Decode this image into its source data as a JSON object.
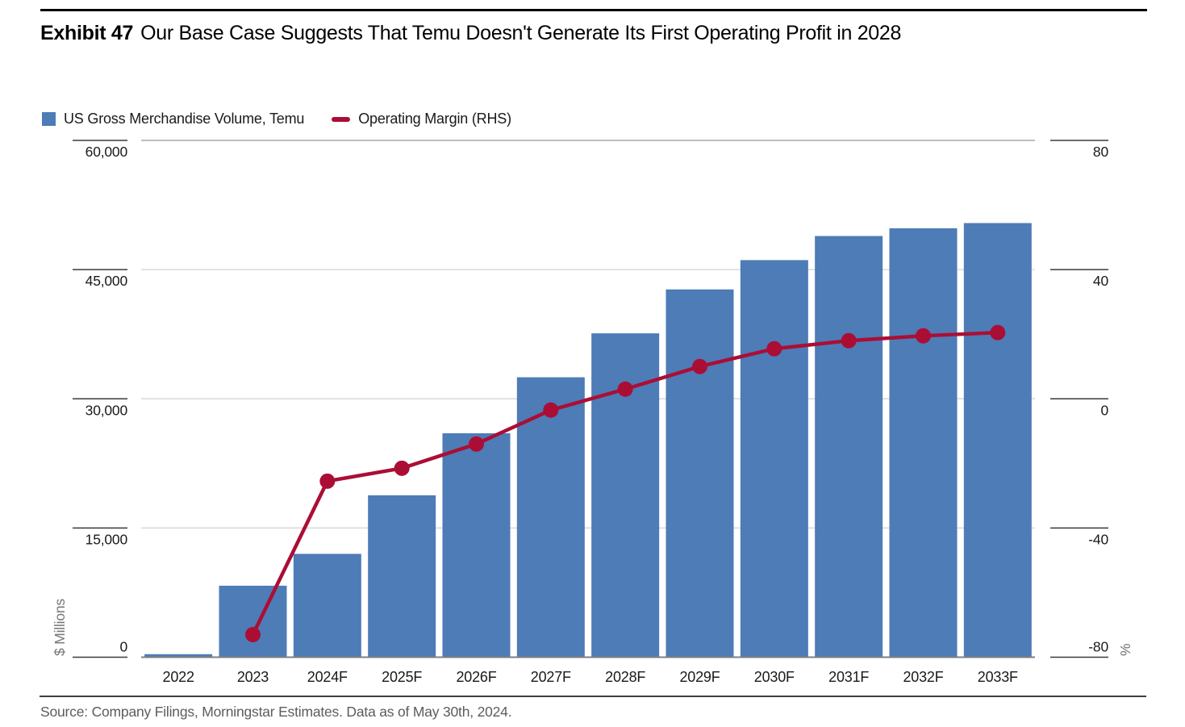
{
  "exhibit": {
    "label": "Exhibit 47",
    "title": "Our Base Case Suggests That Temu Doesn't Generate Its First Operating Profit in 2028"
  },
  "legend": [
    {
      "label": "US Gross Merchandise Volume, Temu",
      "swatch": "square",
      "color": "#4d7cb7"
    },
    {
      "label": "Operating Margin (RHS)",
      "swatch": "line",
      "color": "#ab0e35"
    }
  ],
  "source": "Source: Company Filings, Morningstar Estimates. Data as of May 30th, 2024.",
  "colors": {
    "bar": "#4d7cb7",
    "line": "#ab0e35",
    "gridline": "#d9d9d9",
    "gridline_top": "#a9a9a9",
    "baseline": "#7f7f7f",
    "tick_segment": "#3a3a3a",
    "axis_text": "#1a1a1a",
    "unit_text": "#767676"
  },
  "chart_data": {
    "type": "bar",
    "title": "Our Base Case Suggests That Temu Doesn't Generate Its First Operating Profit in 2028",
    "categories": [
      "2022",
      "2023",
      "2024F",
      "2025F",
      "2026F",
      "2027F",
      "2028F",
      "2029F",
      "2030F",
      "2031F",
      "2032F",
      "2033F"
    ],
    "series": [
      {
        "name": "US Gross Merchandise Volume, Temu",
        "type": "bar",
        "axis": "left",
        "values": [
          350,
          8300,
          12000,
          18800,
          26000,
          32500,
          37600,
          42700,
          46100,
          48900,
          49800,
          50400
        ]
      },
      {
        "name": "Operating Margin (RHS)",
        "type": "line",
        "axis": "right",
        "values": [
          null,
          -73,
          -25.5,
          -21.5,
          -14,
          -3.5,
          3,
          10,
          15.5,
          18,
          19.5,
          20.5
        ]
      }
    ],
    "left_axis": {
      "label": "$ Millions",
      "min": 0,
      "max": 60000,
      "ticks": [
        0,
        15000,
        30000,
        45000,
        60000
      ],
      "tick_labels": [
        "0",
        "15,000",
        "30,000",
        "45,000",
        "60,000"
      ]
    },
    "right_axis": {
      "label": "%",
      "min": -80,
      "max": 80,
      "ticks": [
        -80,
        -40,
        0,
        40,
        80
      ],
      "tick_labels": [
        "-80",
        "-40",
        "0",
        "40",
        "80"
      ]
    },
    "grid": true,
    "legend_position": "top-left"
  }
}
